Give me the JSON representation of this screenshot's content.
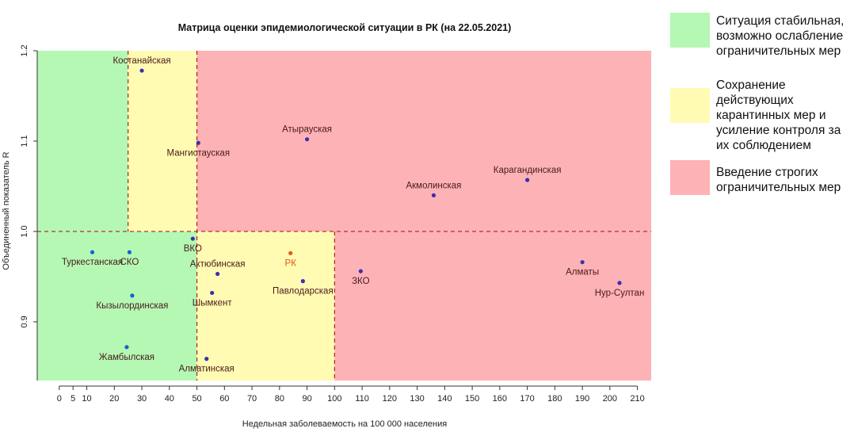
{
  "chart_data": {
    "type": "scatter",
    "title": "Матрица оценки эпидемиологической ситуации в РК (на 22.05.2021)",
    "xlabel": "Недельная заболеваемость на 100 000 населения",
    "ylabel": "Объединенный показатель R",
    "xlim": [
      -8,
      215
    ],
    "ylim": [
      0.835,
      1.2
    ],
    "xticks": [
      0,
      5,
      10,
      20,
      30,
      40,
      50,
      60,
      70,
      80,
      90,
      100,
      110,
      120,
      130,
      140,
      150,
      160,
      170,
      180,
      190,
      200,
      210
    ],
    "yticks": [
      0.9,
      1.0,
      1.1,
      1.2
    ],
    "ytick_labels": [
      "0.9",
      "1.0",
      "1.1",
      "1.2"
    ],
    "grid": false,
    "thresholds": {
      "x": [
        25,
        50,
        100
      ],
      "y": 1.0
    },
    "zones": [
      {
        "x0": -8,
        "x1": 25,
        "y0": 1.0,
        "y1": 1.2,
        "color": "#b4f8b4"
      },
      {
        "x0": 25,
        "x1": 50,
        "y0": 1.0,
        "y1": 1.2,
        "color": "#fffbb2"
      },
      {
        "x0": 50,
        "x1": 215,
        "y0": 1.0,
        "y1": 1.2,
        "color": "#fdb2b6"
      },
      {
        "x0": -8,
        "x1": 50,
        "y0": 0.835,
        "y1": 1.0,
        "color": "#b4f8b4"
      },
      {
        "x0": 50,
        "x1": 100,
        "y0": 0.835,
        "y1": 1.0,
        "color": "#fffbb2"
      },
      {
        "x0": 100,
        "x1": 215,
        "y0": 0.835,
        "y1": 1.0,
        "color": "#fdb2b6"
      }
    ],
    "points": [
      {
        "label": "Костанайская",
        "x": 30,
        "y": 1.178,
        "color": "#3b2fb0",
        "label_pos": "above"
      },
      {
        "label": "Мангистауская",
        "x": 50.5,
        "y": 1.098,
        "color": "#3b2fb0",
        "label_pos": "below"
      },
      {
        "label": "Атырауская",
        "x": 90,
        "y": 1.102,
        "color": "#3b2fb0",
        "label_pos": "above"
      },
      {
        "label": "Акмолинская",
        "x": 136,
        "y": 1.04,
        "color": "#3b2fb0",
        "label_pos": "above"
      },
      {
        "label": "Карагандинская",
        "x": 170,
        "y": 1.057,
        "color": "#3b2fb0",
        "label_pos": "above"
      },
      {
        "label": "ВКО",
        "x": 48.5,
        "y": 0.992,
        "color": "#3b2fb0",
        "label_pos": "below"
      },
      {
        "label": "Туркестанская",
        "x": 12,
        "y": 0.977,
        "color": "#1a5fd0",
        "label_pos": "below"
      },
      {
        "label": "СКО",
        "x": 25.5,
        "y": 0.977,
        "color": "#1a5fd0",
        "label_pos": "below"
      },
      {
        "label": "Актюбинская",
        "x": 57.5,
        "y": 0.953,
        "color": "#3b2fb0",
        "label_pos": "above"
      },
      {
        "label": "РК",
        "x": 84,
        "y": 0.976,
        "color": "#e8541e",
        "label_pos": "below",
        "label_color": "#e8541e"
      },
      {
        "label": "Павлодарская",
        "x": 88.5,
        "y": 0.945,
        "color": "#3b2fb0",
        "label_pos": "below"
      },
      {
        "label": "ЗКО",
        "x": 109.5,
        "y": 0.956,
        "color": "#3b2fb0",
        "label_pos": "below"
      },
      {
        "label": "Шымкент",
        "x": 55.5,
        "y": 0.932,
        "color": "#3b2fb0",
        "label_pos": "below"
      },
      {
        "label": "Кызылординская",
        "x": 26.5,
        "y": 0.929,
        "color": "#1a5fd0",
        "label_pos": "below"
      },
      {
        "label": "Жамбылская",
        "x": 24.5,
        "y": 0.872,
        "color": "#1a5fd0",
        "label_pos": "below"
      },
      {
        "label": "Алматинская",
        "x": 53.5,
        "y": 0.859,
        "color": "#3b2fb0",
        "label_pos": "below"
      },
      {
        "label": "Алматы",
        "x": 190,
        "y": 0.966,
        "color": "#3b2fb0",
        "label_pos": "below"
      },
      {
        "label": "Нур-Султан",
        "x": 203.5,
        "y": 0.943,
        "color": "#3b2fb0",
        "label_pos": "below"
      }
    ]
  },
  "legend": {
    "items": [
      {
        "text": "Ситуация стабильная,\nвозможно ослабление\nограничительных мер",
        "color": "#b4f8b4"
      },
      {
        "text": "Сохранение\nдействующих\nкарантинных мер и\nусиление контроля за\nих соблюдением",
        "color": "#fffbb2"
      },
      {
        "text": "Введение строгих\nограничительных мер",
        "color": "#fdb2b6"
      }
    ]
  }
}
